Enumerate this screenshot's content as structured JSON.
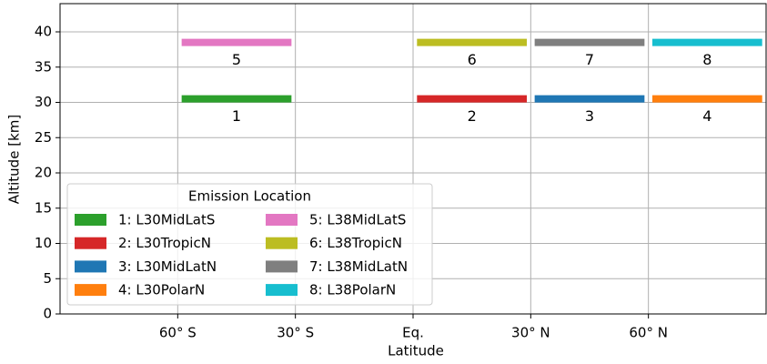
{
  "chart_data": {
    "type": "range-bar",
    "xlabel": "Latitude",
    "ylabel": "Altitude [km]",
    "xlim": [
      -90,
      90
    ],
    "ylim": [
      0,
      44
    ],
    "xticks": [
      {
        "value": -60,
        "label": "60° S"
      },
      {
        "value": -30,
        "label": "30° S"
      },
      {
        "value": 0,
        "label": "Eq."
      },
      {
        "value": 30,
        "label": "30° N"
      },
      {
        "value": 60,
        "label": "60° N"
      }
    ],
    "yticks": [
      0,
      5,
      10,
      15,
      20,
      25,
      30,
      35,
      40
    ],
    "grid": true,
    "legend_title": "Emission Location",
    "legend_loc": "lower left",
    "series": [
      {
        "name": "1: L30MidLatS",
        "label": "1",
        "color": "#2ca02c",
        "lat": [
          -59,
          -31
        ],
        "altitude": 30.5
      },
      {
        "name": "2: L30TropicN",
        "label": "2",
        "color": "#d62728",
        "lat": [
          1,
          29
        ],
        "altitude": 30.5
      },
      {
        "name": "3: L30MidLatN",
        "label": "3",
        "color": "#1f77b4",
        "lat": [
          31,
          59
        ],
        "altitude": 30.5
      },
      {
        "name": "4: L30PolarN",
        "label": "4",
        "color": "#ff7f0e",
        "lat": [
          61,
          89
        ],
        "altitude": 30.5
      },
      {
        "name": "5: L38MidLatS",
        "label": "5",
        "color": "#e377c2",
        "lat": [
          -59,
          -31
        ],
        "altitude": 38.5
      },
      {
        "name": "6: L38TropicN",
        "label": "6",
        "color": "#bcbd22",
        "lat": [
          1,
          29
        ],
        "altitude": 38.5
      },
      {
        "name": "7: L38MidLatN",
        "label": "7",
        "color": "#7f7f7f",
        "lat": [
          31,
          59
        ],
        "altitude": 38.5
      },
      {
        "name": "8: L38PolarN",
        "label": "8",
        "color": "#17becf",
        "lat": [
          61,
          89
        ],
        "altitude": 38.5
      }
    ]
  }
}
